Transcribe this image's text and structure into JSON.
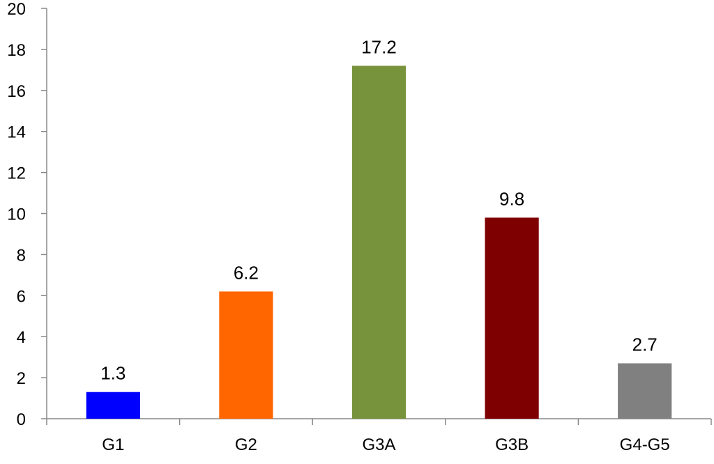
{
  "chart_data": {
    "type": "bar",
    "title": "",
    "xlabel": "",
    "ylabel": "",
    "categories": [
      "G1",
      "G2",
      "G3A",
      "G3B",
      "G4-G5"
    ],
    "values": [
      1.3,
      6.2,
      17.2,
      9.8,
      2.7
    ],
    "data_labels": [
      "1.3",
      "6.2",
      "17.2",
      "9.8",
      "2.7"
    ],
    "colors": [
      "#0000ff",
      "#ff6600",
      "#77933c",
      "#7f0000",
      "#808080"
    ],
    "ylim": [
      0,
      20
    ],
    "yticks": [
      0,
      2,
      4,
      6,
      8,
      10,
      12,
      14,
      16,
      18,
      20
    ],
    "ytick_labels": [
      "0",
      "2",
      "4",
      "6",
      "8",
      "10",
      "12",
      "14",
      "16",
      "18",
      "20"
    ],
    "grid": false,
    "legend": "none"
  }
}
